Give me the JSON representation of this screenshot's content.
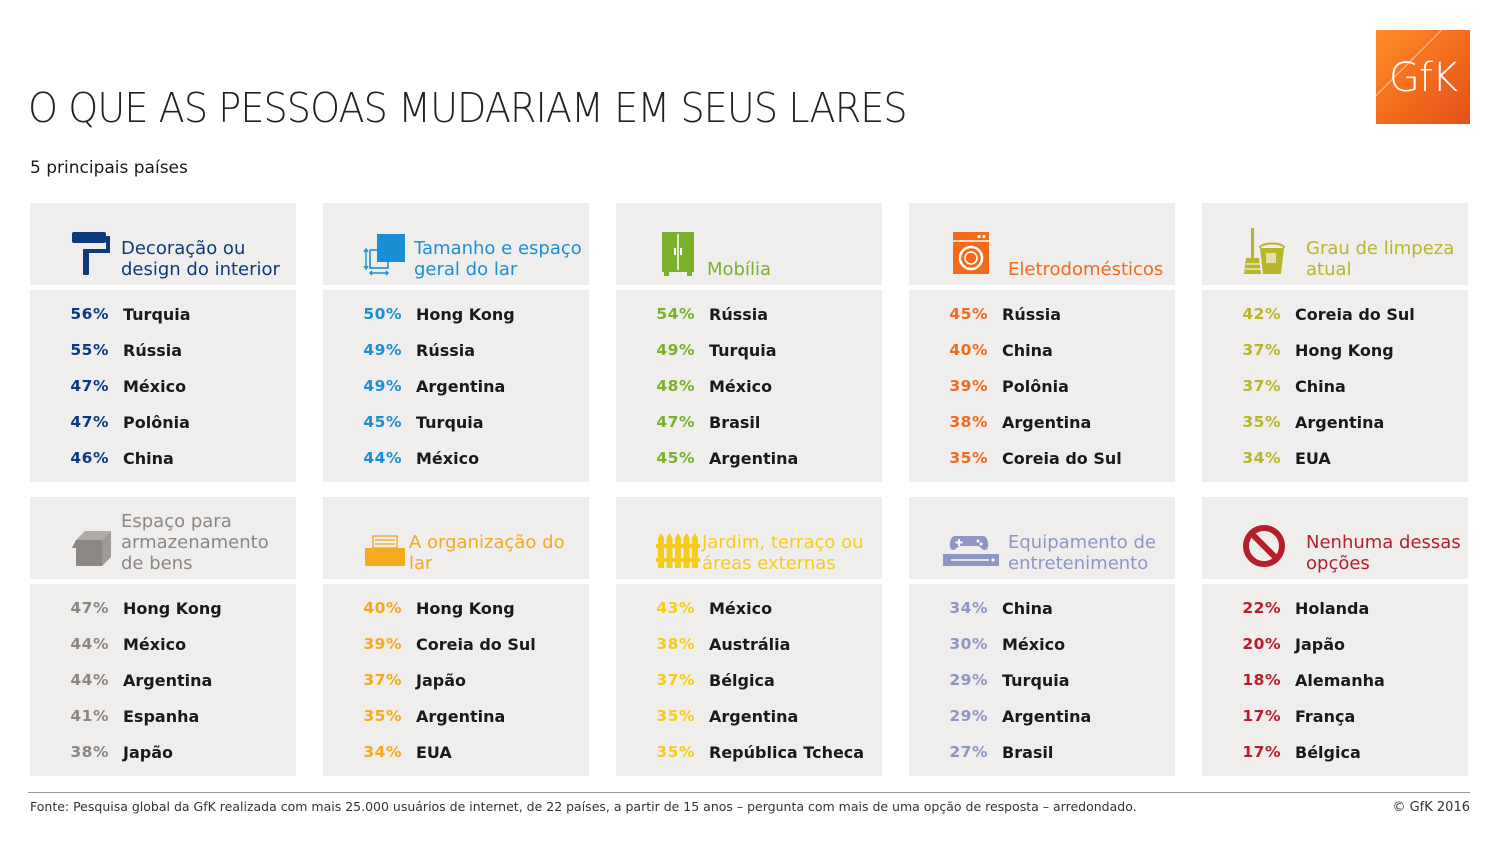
{
  "header": {
    "title": "O QUE AS PESSOAS MUDARIAM EM SEUS LARES",
    "subtitle": "5 principais países",
    "logo_text": "GfK"
  },
  "cards": [
    {
      "icon": "paint-roller-icon",
      "color": "#0c3a7d",
      "title": "Decoração ou design do interior",
      "rows": [
        {
          "pct": "56%",
          "country": "Turquia"
        },
        {
          "pct": "55%",
          "country": "Rússia"
        },
        {
          "pct": "47%",
          "country": "México"
        },
        {
          "pct": "47%",
          "country": "Polônia"
        },
        {
          "pct": "46%",
          "country": "China"
        }
      ]
    },
    {
      "icon": "resize-squares-icon",
      "color": "#1a8fd6",
      "title": "Tamanho e espaço geral do lar",
      "rows": [
        {
          "pct": "50%",
          "country": "Hong Kong"
        },
        {
          "pct": "49%",
          "country": "Rússia"
        },
        {
          "pct": "49%",
          "country": "Argentina"
        },
        {
          "pct": "45%",
          "country": "Turquia"
        },
        {
          "pct": "44%",
          "country": "México"
        }
      ]
    },
    {
      "icon": "wardrobe-icon",
      "color": "#7ab02a",
      "title": "Mobília",
      "rows": [
        {
          "pct": "54%",
          "country": "Rússia"
        },
        {
          "pct": "49%",
          "country": "Turquia"
        },
        {
          "pct": "48%",
          "country": "México"
        },
        {
          "pct": "47%",
          "country": "Brasil"
        },
        {
          "pct": "45%",
          "country": "Argentina"
        }
      ]
    },
    {
      "icon": "washing-machine-icon",
      "color": "#f26a1b",
      "title": "Eletrodomésticos",
      "rows": [
        {
          "pct": "45%",
          "country": "Rússia"
        },
        {
          "pct": "40%",
          "country": "China"
        },
        {
          "pct": "39%",
          "country": "Polônia"
        },
        {
          "pct": "38%",
          "country": "Argentina"
        },
        {
          "pct": "35%",
          "country": "Coreia do Sul"
        }
      ]
    },
    {
      "icon": "broom-bucket-icon",
      "color": "#b8b52a",
      "title": "Grau de limpeza atual",
      "rows": [
        {
          "pct": "42%",
          "country": "Coreia do Sul"
        },
        {
          "pct": "37%",
          "country": "Hong Kong"
        },
        {
          "pct": "37%",
          "country": "China"
        },
        {
          "pct": "35%",
          "country": "Argentina"
        },
        {
          "pct": "34%",
          "country": "EUA"
        }
      ]
    },
    {
      "icon": "storage-box-icon",
      "color": "#8a8785",
      "title": "Espaço para armazenamento de bens",
      "rows": [
        {
          "pct": "47%",
          "country": "Hong Kong"
        },
        {
          "pct": "44%",
          "country": "México"
        },
        {
          "pct": "44%",
          "country": "Argentina"
        },
        {
          "pct": "41%",
          "country": "Espanha"
        },
        {
          "pct": "38%",
          "country": "Japão"
        }
      ]
    },
    {
      "icon": "inbox-tray-icon",
      "color": "#f4a91e",
      "title": "A organização do lar",
      "rows": [
        {
          "pct": "40%",
          "country": "Hong Kong"
        },
        {
          "pct": "39%",
          "country": "Coreia do Sul"
        },
        {
          "pct": "37%",
          "country": "Japão"
        },
        {
          "pct": "35%",
          "country": "Argentina"
        },
        {
          "pct": "34%",
          "country": "EUA"
        }
      ]
    },
    {
      "icon": "fence-icon",
      "color": "#f5cc1b",
      "title": "Jardim, terraço ou áreas externas",
      "rows": [
        {
          "pct": "43%",
          "country": "México"
        },
        {
          "pct": "38%",
          "country": "Austrália"
        },
        {
          "pct": "37%",
          "country": "Bélgica"
        },
        {
          "pct": "35%",
          "country": "Argentina"
        },
        {
          "pct": "35%",
          "country": "República Tcheca"
        }
      ]
    },
    {
      "icon": "game-console-icon",
      "color": "#8f96c6",
      "title": "Equipamento de entretenimento",
      "rows": [
        {
          "pct": "34%",
          "country": "China"
        },
        {
          "pct": "30%",
          "country": "México"
        },
        {
          "pct": "29%",
          "country": "Turquia"
        },
        {
          "pct": "29%",
          "country": "Argentina"
        },
        {
          "pct": "27%",
          "country": "Brasil"
        }
      ]
    },
    {
      "icon": "prohibited-icon",
      "color": "#b51e2b",
      "title": "Nenhuma dessas opções",
      "rows": [
        {
          "pct": "22%",
          "country": "Holanda"
        },
        {
          "pct": "20%",
          "country": "Japão"
        },
        {
          "pct": "18%",
          "country": "Alemanha"
        },
        {
          "pct": "17%",
          "country": "França"
        },
        {
          "pct": "17%",
          "country": "Bélgica"
        }
      ]
    }
  ],
  "footer": {
    "source": "Fonte: Pesquisa global da GfK realizada com mais 25.000 usuários de internet, de 22 países, a partir de 15 anos – pergunta com mais de uma opção de resposta – arredondado.",
    "copyright": "© GfK 2016"
  }
}
